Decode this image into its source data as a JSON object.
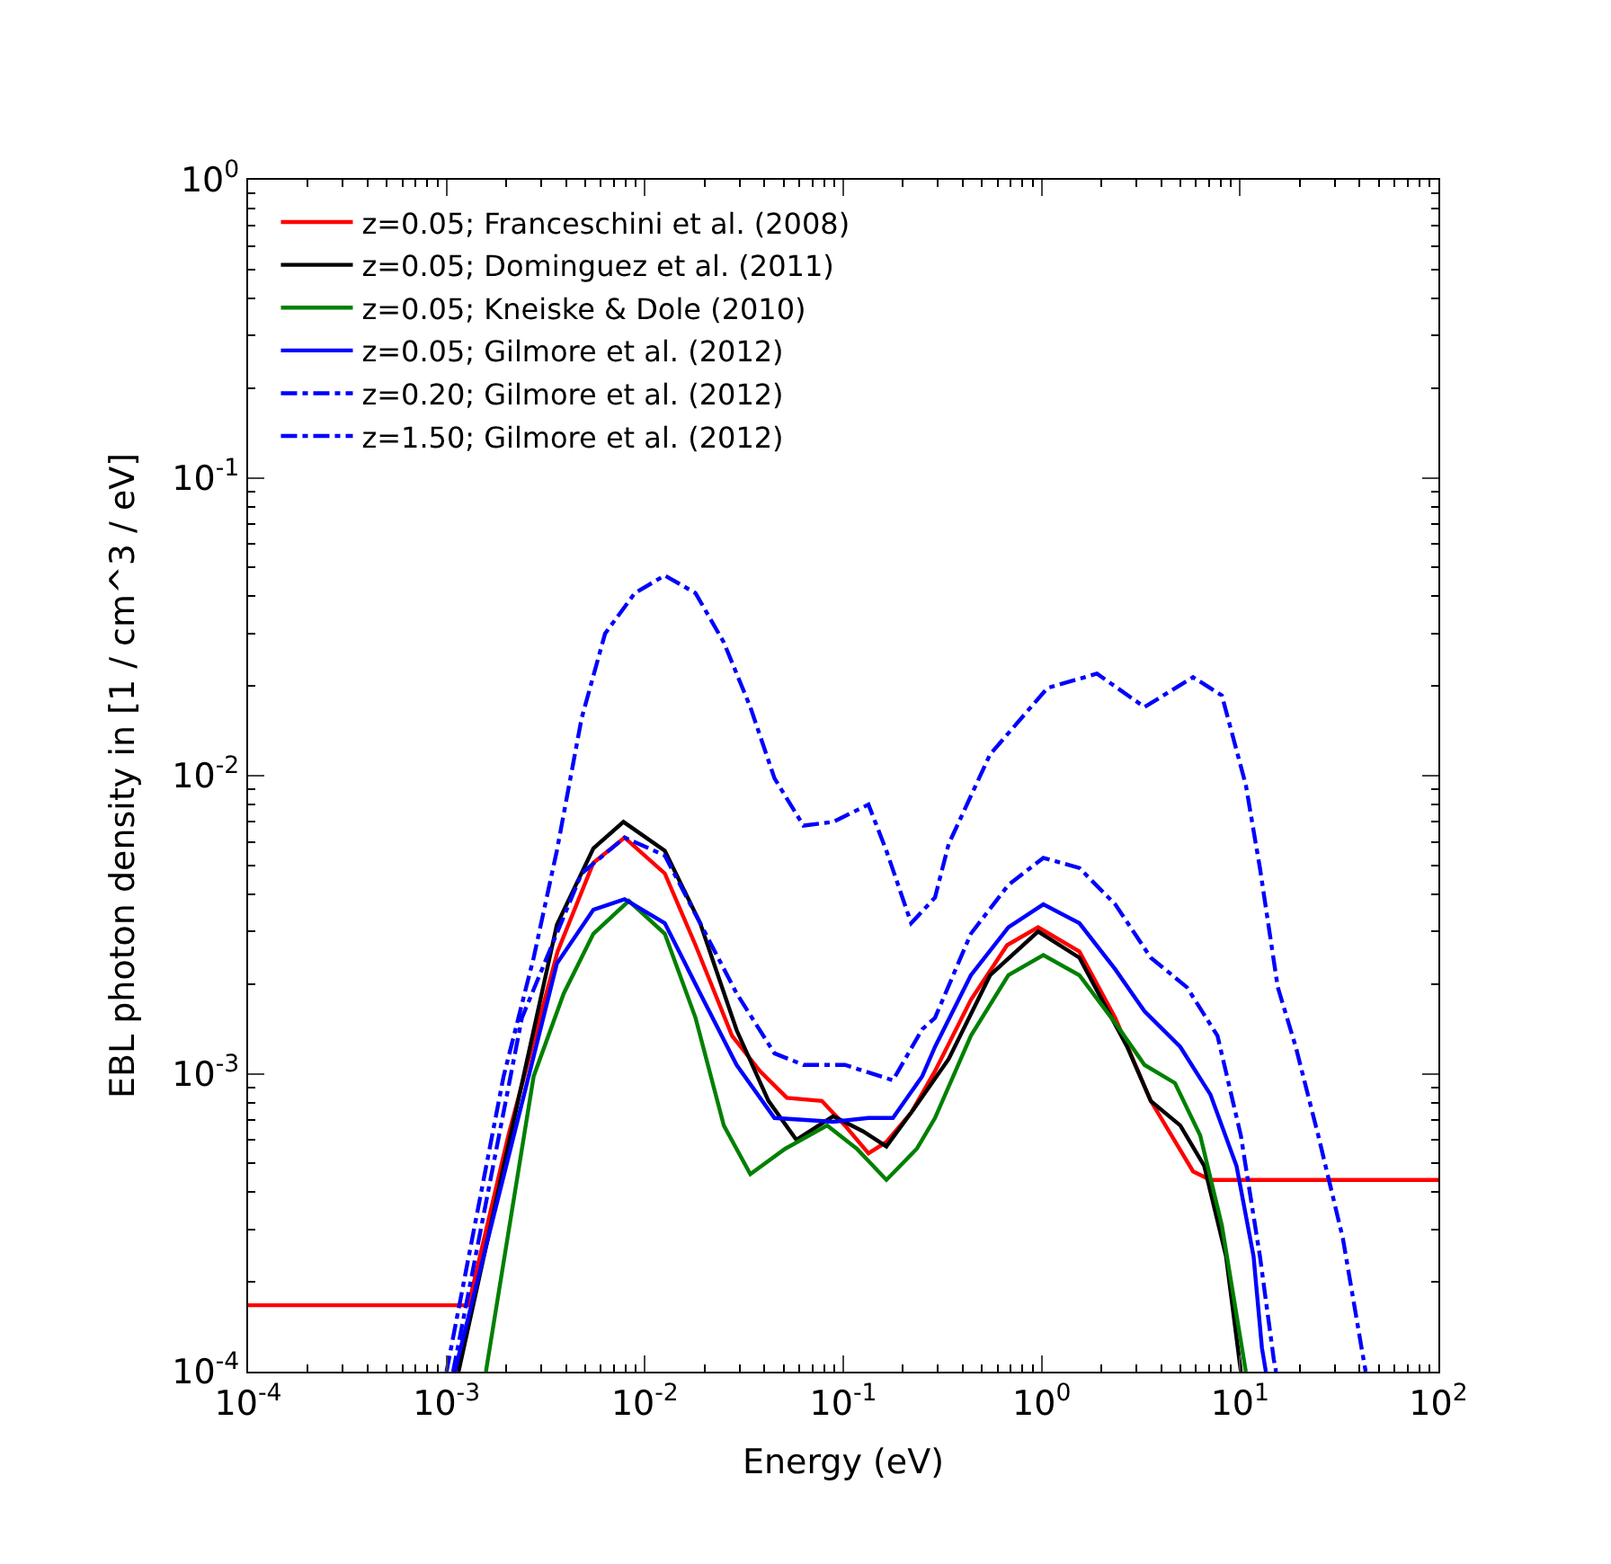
{
  "chart_data": {
    "type": "line",
    "xlabel": "Energy (eV)",
    "ylabel": "EBL photon density in [1 / cm^3 / eV]",
    "log": "xy",
    "grid": false,
    "legend": "top left",
    "xlim": [
      0.0001,
      100
    ],
    "ylim": [
      0.0001,
      1
    ],
    "xticks": [
      {
        "value": 0.0001,
        "label": "10$^{-4}$"
      },
      {
        "value": 0.001,
        "label": "10$^{-3}$"
      },
      {
        "value": 0.01,
        "label": "10$^{-2}$"
      },
      {
        "value": 0.1,
        "label": "10$^{-1}$"
      },
      {
        "value": 1,
        "label": "10$^{0}$"
      },
      {
        "value": 10,
        "label": "10$^{1}$"
      },
      {
        "value": 100,
        "label": "10$^{2}$"
      }
    ],
    "yticks": [
      {
        "value": 0.0001,
        "label": "10$^{-4}$"
      },
      {
        "value": 0.001,
        "label": "10$^{-3}$"
      },
      {
        "value": 0.01,
        "label": "10$^{-2}$"
      },
      {
        "value": 0.1,
        "label": "10$^{-1}$"
      },
      {
        "value": 1,
        "label": "10$^{0}$"
      }
    ],
    "series": [
      {
        "name": "z=0.05; Franceschini et al. (2008)",
        "color": "#ff0000",
        "line_style": "solid",
        "x": [
          0.0001,
          0.00129,
          0.00205,
          0.00363,
          0.0055,
          0.0079,
          0.0126,
          0.018,
          0.0275,
          0.038,
          0.052,
          0.078,
          0.102,
          0.134,
          0.165,
          0.22,
          0.29,
          0.44,
          0.67,
          0.96,
          1.55,
          2.35,
          3.55,
          5.8,
          7.1,
          100
        ],
        "values": [
          0.000167,
          0.000167,
          0.00062,
          0.00257,
          0.0051,
          0.0062,
          0.0047,
          0.0027,
          0.00134,
          0.00102,
          0.00083,
          0.00081,
          0.00067,
          0.00054,
          0.00059,
          0.00074,
          0.00102,
          0.00177,
          0.0027,
          0.0031,
          0.00257,
          0.00154,
          0.00081,
          0.00047,
          0.00044,
          0.00044
        ]
      },
      {
        "name": "z=0.05; Dominguez et al. (2011)",
        "color": "#000000",
        "line_style": "solid",
        "x": [
          0.00115,
          0.0036,
          0.0055,
          0.0078,
          0.0126,
          0.019,
          0.029,
          0.042,
          0.058,
          0.089,
          0.126,
          0.165,
          0.22,
          0.34,
          0.55,
          0.96,
          1.55,
          2.7,
          3.55,
          5.0,
          6.6,
          8.5,
          10.1
        ],
        "values": [
          0.0001,
          0.00316,
          0.0057,
          0.007,
          0.0056,
          0.0032,
          0.0014,
          0.00081,
          0.0006,
          0.00072,
          0.00064,
          0.00057,
          0.00074,
          0.00112,
          0.00214,
          0.003,
          0.00245,
          0.00123,
          0.00081,
          0.00067,
          0.00049,
          0.000244,
          0.0001
        ]
      },
      {
        "name": "z=0.05; Kneiske & Dole (2010)",
        "color": "#008000",
        "line_style": "solid",
        "x": [
          0.00158,
          0.00275,
          0.0039,
          0.0055,
          0.0083,
          0.0126,
          0.018,
          0.025,
          0.034,
          0.051,
          0.083,
          0.117,
          0.165,
          0.235,
          0.29,
          0.44,
          0.68,
          1.02,
          1.55,
          2.35,
          3.3,
          4.7,
          6.3,
          8.1,
          10.7
        ],
        "values": [
          0.0001,
          0.00098,
          0.00186,
          0.00295,
          0.0038,
          0.00295,
          0.00154,
          0.00067,
          0.00046,
          0.00056,
          0.00067,
          0.00056,
          0.00044,
          0.00056,
          0.00071,
          0.00134,
          0.00214,
          0.0025,
          0.00214,
          0.00148,
          0.00107,
          0.00093,
          0.00062,
          0.00031,
          0.0001
        ]
      },
      {
        "name": "z=0.05; Gilmore et al. (2012)",
        "color": "#0000ff",
        "line_style": "solid",
        "x": [
          0.0011,
          0.0036,
          0.0055,
          0.0079,
          0.0126,
          0.019,
          0.029,
          0.045,
          0.089,
          0.134,
          0.178,
          0.25,
          0.29,
          0.44,
          0.68,
          1.02,
          1.55,
          2.35,
          3.3,
          5.0,
          7.1,
          9.6,
          11.7,
          12.9,
          13.5
        ],
        "values": [
          0.0001,
          0.00234,
          0.00355,
          0.00385,
          0.0032,
          0.00186,
          0.00107,
          0.00071,
          0.00069,
          0.00071,
          0.00071,
          0.00098,
          0.00123,
          0.00214,
          0.0031,
          0.0037,
          0.0032,
          0.00224,
          0.00162,
          0.00123,
          0.00085,
          0.00049,
          0.000244,
          0.00012,
          0.0001
        ]
      },
      {
        "name": "z=0.20; Gilmore et al. (2012)",
        "color": "#0000ff",
        "line_style": "dashdot",
        "x": [
          0.00108,
          0.0024,
          0.0048,
          0.0079,
          0.0126,
          0.019,
          0.029,
          0.045,
          0.063,
          0.102,
          0.178,
          0.25,
          0.29,
          0.44,
          0.68,
          1.02,
          1.55,
          2.35,
          3.55,
          5.4,
          7.7,
          10.1,
          12.6,
          14.8,
          15.2
        ],
        "values": [
          0.0001,
          0.00154,
          0.0047,
          0.0062,
          0.0054,
          0.0032,
          0.00186,
          0.00117,
          0.00107,
          0.00107,
          0.00095,
          0.00141,
          0.00154,
          0.00295,
          0.0043,
          0.0053,
          0.0049,
          0.0037,
          0.00245,
          0.00195,
          0.00134,
          0.00062,
          0.000244,
          0.00011,
          0.0001
        ]
      },
      {
        "name": "z=1.50; Gilmore et al. (2012)",
        "color": "#0000ff",
        "line_style": "dashdot",
        "x": [
          0.001,
          0.00194,
          0.00275,
          0.0036,
          0.0048,
          0.0063,
          0.0089,
          0.0126,
          0.018,
          0.025,
          0.034,
          0.045,
          0.063,
          0.089,
          0.134,
          0.165,
          0.22,
          0.29,
          0.34,
          0.55,
          1.07,
          1.9,
          3.3,
          5.8,
          8.1,
          10.7,
          12.6,
          15.5,
          19.1,
          24.8,
          33,
          41,
          43
        ],
        "values": [
          0.0001,
          0.00098,
          0.00245,
          0.0056,
          0.0156,
          0.03,
          0.041,
          0.047,
          0.041,
          0.028,
          0.017,
          0.0098,
          0.0068,
          0.007,
          0.008,
          0.0056,
          0.0032,
          0.0039,
          0.0059,
          0.0118,
          0.0197,
          0.022,
          0.017,
          0.0214,
          0.0186,
          0.0093,
          0.0049,
          0.00195,
          0.00123,
          0.00062,
          0.00028,
          0.00012,
          0.0001
        ]
      }
    ]
  }
}
